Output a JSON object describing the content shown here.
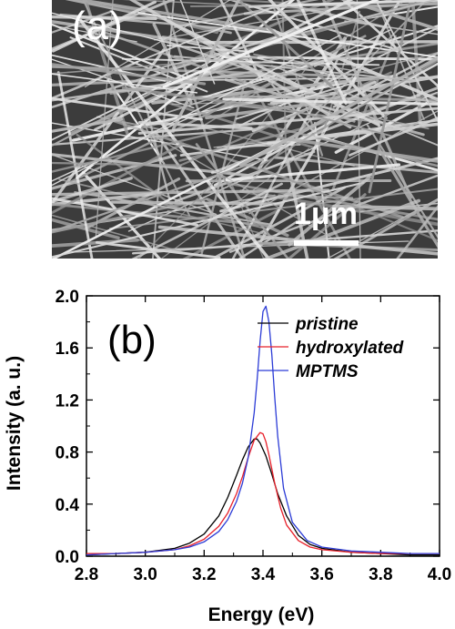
{
  "panel_a": {
    "label": "(a)",
    "scale_bar_label": "1μm"
  },
  "chart_data": {
    "type": "line",
    "panel_label": "(b)",
    "xlabel": "Energy (eV)",
    "ylabel": "Intensity (a. u.)",
    "xlim": [
      2.8,
      4.0
    ],
    "ylim": [
      0.0,
      2.0
    ],
    "xticks": [
      "2.8",
      "3.0",
      "3.2",
      "3.4",
      "3.6",
      "3.8",
      "4.0"
    ],
    "yticks": [
      "0.0",
      "0.4",
      "0.8",
      "1.2",
      "1.6",
      "2.0"
    ],
    "grid": false,
    "legend_position": "top-right",
    "series": [
      {
        "name": "pristine",
        "color": "#000000",
        "x": [
          2.8,
          2.9,
          3.0,
          3.1,
          3.15,
          3.2,
          3.25,
          3.28,
          3.31,
          3.33,
          3.35,
          3.37,
          3.38,
          3.39,
          3.41,
          3.43,
          3.45,
          3.48,
          3.52,
          3.56,
          3.6,
          3.7,
          3.8,
          3.9,
          4.0
        ],
        "y": [
          0.01,
          0.02,
          0.03,
          0.06,
          0.1,
          0.17,
          0.31,
          0.45,
          0.62,
          0.74,
          0.84,
          0.9,
          0.9,
          0.87,
          0.77,
          0.63,
          0.48,
          0.31,
          0.16,
          0.09,
          0.06,
          0.03,
          0.02,
          0.01,
          0.01
        ]
      },
      {
        "name": "hydroxylated",
        "color": "#e8202a",
        "x": [
          2.8,
          2.9,
          3.0,
          3.1,
          3.15,
          3.2,
          3.25,
          3.28,
          3.31,
          3.33,
          3.35,
          3.37,
          3.39,
          3.4,
          3.41,
          3.42,
          3.44,
          3.46,
          3.48,
          3.52,
          3.56,
          3.6,
          3.7,
          3.8,
          3.9,
          4.0
        ],
        "y": [
          0.02,
          0.02,
          0.03,
          0.05,
          0.08,
          0.13,
          0.23,
          0.33,
          0.48,
          0.61,
          0.76,
          0.89,
          0.95,
          0.94,
          0.88,
          0.78,
          0.56,
          0.37,
          0.24,
          0.12,
          0.07,
          0.05,
          0.03,
          0.02,
          0.02,
          0.02
        ]
      },
      {
        "name": "MPTMS",
        "color": "#2b3bd6",
        "x": [
          2.8,
          2.9,
          3.0,
          3.1,
          3.15,
          3.2,
          3.25,
          3.28,
          3.31,
          3.33,
          3.35,
          3.37,
          3.38,
          3.39,
          3.4,
          3.41,
          3.42,
          3.43,
          3.44,
          3.45,
          3.47,
          3.5,
          3.55,
          3.6,
          3.7,
          3.8,
          3.9,
          4.0
        ],
        "y": [
          0.01,
          0.02,
          0.03,
          0.05,
          0.07,
          0.11,
          0.19,
          0.28,
          0.42,
          0.56,
          0.76,
          1.1,
          1.35,
          1.65,
          1.88,
          1.92,
          1.8,
          1.55,
          1.22,
          0.92,
          0.52,
          0.26,
          0.12,
          0.07,
          0.04,
          0.03,
          0.02,
          0.02
        ]
      }
    ]
  }
}
